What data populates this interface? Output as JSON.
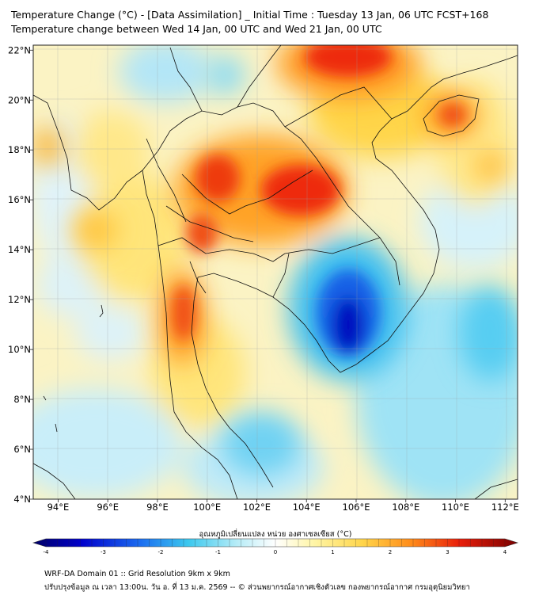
{
  "title": {
    "line1": "Temperature Change (°C) - [Data Assimilation] _ Initial Time : Tuesday 13 Jan, 06 UTC FCST+168",
    "line2": "Temperature change between Wed 14 Jan, 00 UTC and Wed 21 Jan, 00 UTC"
  },
  "map": {
    "lon_ticks": [
      "94°E",
      "96°E",
      "98°E",
      "100°E",
      "102°E",
      "104°E",
      "106°E",
      "108°E",
      "110°E",
      "112°E"
    ],
    "lat_ticks": [
      "4°N",
      "6°N",
      "8°N",
      "10°N",
      "12°N",
      "14°N",
      "16°N",
      "18°N",
      "20°N",
      "22°N"
    ],
    "lon_values": [
      94,
      96,
      98,
      100,
      102,
      104,
      106,
      108,
      110,
      112
    ],
    "lat_values": [
      4,
      6,
      8,
      10,
      12,
      14,
      16,
      18,
      20,
      22
    ],
    "lon_range": [
      93,
      112.5
    ],
    "lat_range": [
      4,
      22.2
    ]
  },
  "colorbar": {
    "label": "อุณหภูมิเปลี่ยนแปลง หน่วย องศาเซลเซียส (°C)",
    "ticks": [
      "-4",
      "-3",
      "-2",
      "-1",
      "0",
      "1",
      "2",
      "3",
      "4"
    ],
    "tick_values": [
      -4,
      -3,
      -2,
      -1,
      0,
      1,
      2,
      3,
      4
    ],
    "range": [
      -4,
      4
    ]
  },
  "footer": {
    "line1": "WRF-DA Domain 01 :: Grid Resolution 9km x 9km",
    "line2": "ปรับปรุงข้อมูล ณ เวลา 13:00น. วัน อ. ที่ 13 ม.ค. 2569 -- © ส่วนพยากรณ์อากาศเชิงตัวเลข กองพยากรณ์อากาศ กรมอุตุนิยมวิทยา"
  },
  "field_features": [
    {
      "type": "warm",
      "lon": 104.2,
      "lat": 16.2,
      "value": 3.2
    },
    {
      "type": "warm",
      "lon": 101.5,
      "lat": 16.6,
      "value": 3.0
    },
    {
      "type": "warm",
      "lon": 105.5,
      "lat": 21.4,
      "value": 3.2
    },
    {
      "type": "warm",
      "lon": 99.0,
      "lat": 10.9,
      "value": 2.8
    },
    {
      "type": "warm",
      "lon": 110.0,
      "lat": 19.6,
      "value": 2.4
    },
    {
      "type": "cold",
      "lon": 105.8,
      "lat": 11.0,
      "value": -3.6
    },
    {
      "type": "cold",
      "lon": 102.8,
      "lat": 6.4,
      "value": -1.2
    },
    {
      "type": "cold",
      "lon": 111.5,
      "lat": 10.0,
      "value": -1.0
    }
  ]
}
